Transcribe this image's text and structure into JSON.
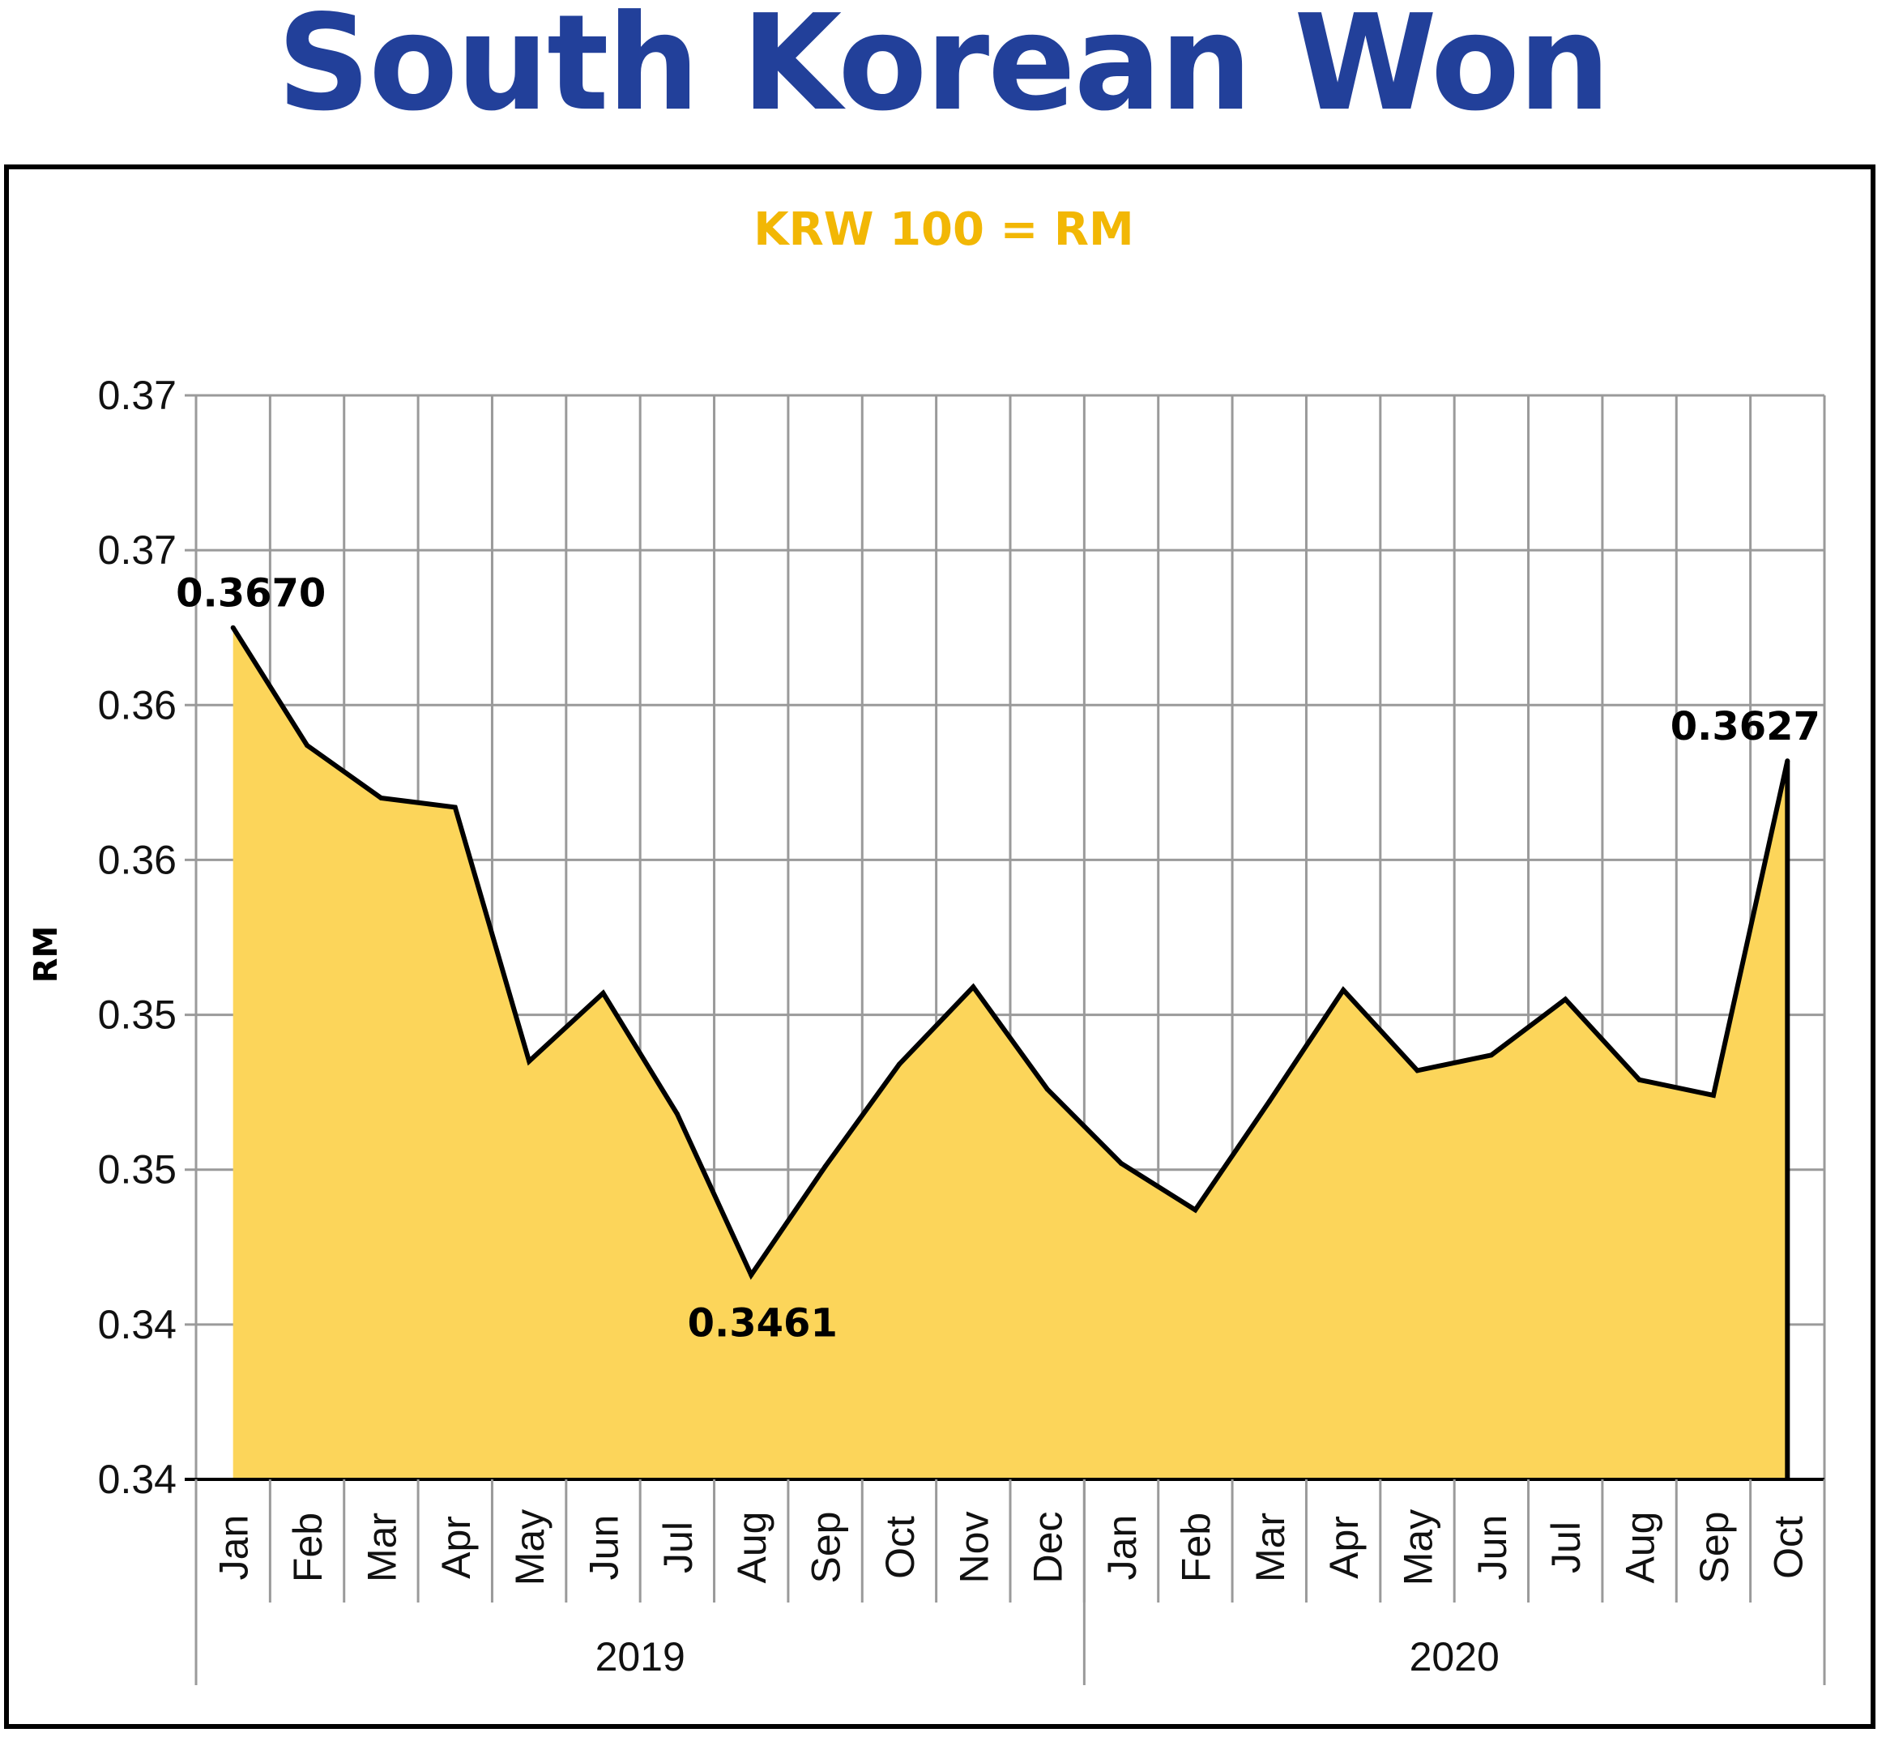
{
  "title": "South Korean Won",
  "colors": {
    "title": "#22409a",
    "subtitle": "#f2b705",
    "area": "#fcd55a",
    "line": "#000000",
    "grid": "#9a9a9a"
  },
  "chart_data": {
    "type": "area",
    "subtitle": "KRW 100 = RM",
    "ylabel": "RM",
    "ylim": [
      0.3395,
      0.3745
    ],
    "yticks": [
      0.3395,
      0.3445,
      0.3495,
      0.3545,
      0.3595,
      0.3645,
      0.3695,
      0.3745
    ],
    "ytick_labels": [
      "0.34",
      "0.34",
      "0.35",
      "0.35",
      "0.36",
      "0.36",
      "0.37",
      "0.37"
    ],
    "categories": [
      "Jan",
      "Feb",
      "Mar",
      "Apr",
      "May",
      "Jun",
      "Jul",
      "Aug",
      "Sep",
      "Oct",
      "Nov",
      "Dec",
      "Jan",
      "Feb",
      "Mar",
      "Apr",
      "May",
      "Jun",
      "Jul",
      "Aug",
      "Sep",
      "Oct"
    ],
    "groups": [
      {
        "label": "2019",
        "count": 12
      },
      {
        "label": "2020",
        "count": 10
      }
    ],
    "values": [
      0.367,
      0.3632,
      0.3615,
      0.3612,
      0.353,
      0.3552,
      0.3513,
      0.3461,
      0.3496,
      0.3529,
      0.3554,
      0.3521,
      0.3497,
      0.3482,
      0.3517,
      0.3553,
      0.3527,
      0.3532,
      0.355,
      0.3524,
      0.3519,
      0.3627
    ],
    "data_labels": [
      {
        "index": 0,
        "text": "0.3670",
        "pos": "above"
      },
      {
        "index": 7,
        "text": "0.3461",
        "pos": "below"
      },
      {
        "index": 21,
        "text": "0.3627",
        "pos": "above"
      }
    ],
    "grid": true
  }
}
